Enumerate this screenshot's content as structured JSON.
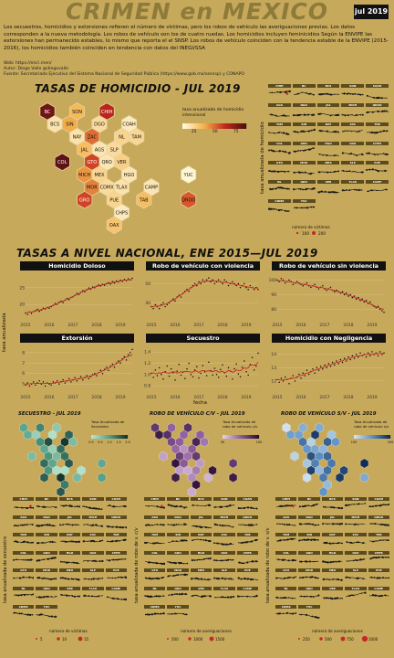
{
  "header": {
    "title": "CRIMEN en MEXICO",
    "date_badge": "jul 2019"
  },
  "intro": {
    "text": "Los secuestros, homicidios y extorsiones refieren el número de víctimas, pero los robos de vehículo las averiguaciones previas. Los datos corresponden a la nueva metodología. Los robos de vehículo son los de cuatro ruedas. Los homicidios incluyen feminicidios Según la ENVIPE las extorsiones han permanecido estables, lo mismo que reporta el el SNSP. Los robos de vehículo coinciden con la tendencia estable de la ENVIPE (2015-2016), los homicidios también coinciden en tendencia con datos del INEGI/SSA",
    "web": "Web: https://elcri.men/",
    "author": "Autor: Diego Valle @diegovalle",
    "source": "Fuente: Secretariado Ejecutivo del Sistema Nacional de Seguridad Pública (https://www.gob.mx/sesnsp) y CONAPO"
  },
  "homicide_map": {
    "title": "TASAS DE HOMICIDIO - JUL 2019",
    "legend_title": "tasa anualizada de homicidio intencional",
    "legend_ticks": [
      "25",
      "50",
      "75"
    ],
    "states": [
      {
        "abbr": "BC",
        "rate": 90
      },
      {
        "abbr": "SON",
        "rate": 30
      },
      {
        "abbr": "CHIH",
        "rate": 70
      },
      {
        "abbr": "BCS",
        "rate": 12
      },
      {
        "abbr": "SIN",
        "rate": 35
      },
      {
        "abbr": "DGO",
        "rate": 15
      },
      {
        "abbr": "COAH",
        "rate": 8
      },
      {
        "abbr": "NAY",
        "rate": 12
      },
      {
        "abbr": "ZAC",
        "rate": 50
      },
      {
        "abbr": "NL",
        "rate": 18
      },
      {
        "abbr": "TAM",
        "rate": 17
      },
      {
        "abbr": "AGS",
        "rate": 10
      },
      {
        "abbr": "JAL",
        "rate": 28
      },
      {
        "abbr": "SLP",
        "rate": 15
      },
      {
        "abbr": "COL",
        "rate": 95
      },
      {
        "abbr": "GTO",
        "rate": 60
      },
      {
        "abbr": "QRO",
        "rate": 10
      },
      {
        "abbr": "VER",
        "rate": 20
      },
      {
        "abbr": "MICH",
        "rate": 40
      },
      {
        "abbr": "MEX",
        "rate": 18
      },
      {
        "abbr": "HGO",
        "rate": 10
      },
      {
        "abbr": "YUC",
        "rate": 2
      },
      {
        "abbr": "MOR",
        "rate": 45
      },
      {
        "abbr": "CDMX",
        "rate": 15
      },
      {
        "abbr": "TLAX",
        "rate": 12
      },
      {
        "abbr": "CAMP",
        "rate": 10
      },
      {
        "abbr": "GRO",
        "rate": 60
      },
      {
        "abbr": "PUE",
        "rate": 18
      },
      {
        "abbr": "TAB",
        "rate": 28
      },
      {
        "abbr": "QROO",
        "rate": 55
      },
      {
        "abbr": "CHPS",
        "rate": 8
      },
      {
        "abbr": "OAX",
        "rate": 25
      }
    ]
  },
  "homicide_smallmult": {
    "ylabel": "tasa anualizada de homicidio",
    "labels": [
      "CHIH",
      "BC",
      "BCS",
      "SON",
      "COAH",
      "AGS",
      "DGO",
      "JAL",
      "MICH",
      "QROO",
      "TAM",
      "SIN",
      "NAY",
      "ZAC",
      "TAB",
      "COL",
      "GRO",
      "HGO",
      "OAX",
      "CHPS",
      "GTO",
      "MOR",
      "MEX",
      "SLP",
      "PUE",
      "NL",
      "QRO",
      "VER",
      "TLAX",
      "CAMP",
      "CDMX",
      "YUC"
    ],
    "size_legend_title": "número de víctimas",
    "size_legend_ticks": [
      "100",
      "200"
    ]
  },
  "national": {
    "title": "TASAS A NIVEL NACIONAL, ENE 2015—JUL 2019",
    "ylabel": "tasa anualizada",
    "xlabel": "fecha",
    "x_ticks": [
      "2015",
      "2016",
      "2017",
      "2018",
      "2019"
    ],
    "panels": [
      {
        "name": "Homicidio Doloso",
        "yticks": [
          "20",
          "25"
        ],
        "ymin": 16,
        "ymax": 29,
        "values": [
          17.5,
          17.1,
          17.8,
          17.4,
          17.9,
          18.2,
          18.6,
          18.0,
          18.4,
          18.9,
          18.7,
          19.1,
          18.9,
          19.4,
          19.8,
          20.3,
          20.1,
          20.7,
          21.0,
          20.6,
          21.3,
          21.8,
          21.5,
          22.1,
          22.3,
          22.7,
          23.3,
          23.0,
          23.6,
          24.1,
          23.8,
          24.4,
          24.9,
          24.6,
          25.2,
          25.0,
          25.4,
          25.8,
          25.5,
          26.0,
          25.7,
          26.2,
          26.5,
          26.1,
          26.8,
          26.4,
          27.0,
          26.7,
          27.2,
          26.9,
          27.4,
          27.1,
          27.6,
          27.3,
          27.8
        ]
      },
      {
        "name": "Robo de vehículo con violencia",
        "yticks": [
          "40",
          "50"
        ],
        "ymin": 32,
        "ymax": 55,
        "values": [
          38,
          37,
          39,
          38,
          37,
          39,
          40,
          38,
          39,
          40,
          41,
          42,
          41,
          43,
          44,
          43,
          45,
          46,
          47,
          46,
          48,
          49,
          50,
          49,
          51,
          50,
          52,
          51,
          52,
          53,
          51,
          52,
          50,
          51,
          52,
          51,
          50,
          52,
          51,
          49,
          50,
          51,
          50,
          49,
          50,
          48,
          49,
          50,
          48,
          47,
          49,
          48,
          47,
          48,
          47
        ]
      },
      {
        "name": "Robo de vehículo sin violencia",
        "yticks": [
          "80",
          "90",
          "100"
        ],
        "ymin": 74,
        "ymax": 104,
        "values": [
          100,
          99,
          101,
          100,
          98,
          99,
          100,
          99,
          97,
          98,
          99,
          98,
          97,
          96,
          97,
          98,
          96,
          95,
          96,
          97,
          95,
          94,
          95,
          96,
          94,
          93,
          94,
          95,
          93,
          92,
          93,
          92,
          91,
          92,
          90,
          91,
          89,
          90,
          88,
          89,
          87,
          88,
          86,
          87,
          85,
          86,
          84,
          85,
          83,
          82,
          81,
          82,
          80,
          79,
          78
        ]
      },
      {
        "name": "Extorsión",
        "yticks": [
          "5",
          "6",
          "7",
          "8"
        ],
        "ymin": 4.4,
        "ymax": 8.6,
        "values": [
          4.9,
          5.1,
          4.8,
          5.0,
          5.2,
          4.9,
          5.1,
          5.3,
          5.0,
          5.2,
          4.8,
          5.1,
          5.0,
          4.9,
          5.2,
          5.1,
          5.3,
          5.0,
          5.2,
          5.4,
          5.1,
          5.3,
          5.5,
          5.2,
          5.4,
          5.6,
          5.3,
          5.5,
          5.7,
          5.4,
          5.6,
          5.8,
          5.5,
          5.7,
          5.9,
          6.0,
          5.8,
          6.1,
          6.3,
          6.0,
          6.4,
          6.6,
          6.3,
          6.7,
          6.9,
          6.6,
          7.0,
          7.2,
          7.0,
          7.4,
          7.6,
          7.3,
          7.8,
          8.0,
          8.3
        ]
      },
      {
        "name": "Secuestro",
        "yticks": [
          "0.8",
          "1.0",
          "1.2",
          "1.4"
        ],
        "ymin": 0.72,
        "ymax": 1.5,
        "values": [
          1.02,
          0.95,
          1.08,
          0.98,
          1.12,
          1.0,
          0.92,
          1.05,
          1.15,
          0.97,
          1.1,
          1.03,
          0.9,
          1.06,
          1.18,
          0.99,
          1.04,
          0.93,
          1.1,
          1.2,
          1.0,
          0.96,
          1.08,
          1.14,
          0.94,
          1.02,
          1.16,
          1.05,
          0.98,
          1.22,
          1.07,
          0.99,
          1.11,
          1.0,
          0.95,
          1.09,
          1.17,
          1.03,
          0.97,
          1.12,
          1.06,
          0.92,
          1.1,
          1.19,
          1.01,
          0.96,
          1.13,
          1.24,
          1.05,
          0.99,
          1.18,
          1.3,
          1.08,
          1.15,
          1.38
        ]
      },
      {
        "name": "Homicidio con Negligencia",
        "yticks": [
          "12",
          "13",
          "14"
        ],
        "ymin": 11.3,
        "ymax": 14.6,
        "values": [
          12.1,
          11.9,
          12.2,
          12.0,
          12.3,
          12.1,
          11.8,
          12.2,
          12.4,
          12.0,
          12.3,
          12.5,
          12.2,
          12.6,
          12.4,
          12.8,
          12.5,
          12.7,
          12.9,
          12.6,
          13.0,
          12.8,
          13.1,
          12.9,
          13.2,
          13.0,
          13.3,
          13.1,
          13.4,
          13.2,
          13.5,
          13.3,
          13.6,
          13.4,
          13.7,
          13.5,
          13.8,
          13.6,
          13.9,
          13.7,
          14.0,
          13.8,
          14.1,
          13.9,
          14.0,
          13.8,
          14.1,
          13.9,
          14.2,
          14.0,
          14.1,
          13.9,
          14.2,
          14.0,
          14.1
        ]
      }
    ]
  },
  "mini_maps": [
    {
      "title": "SECUESTRO - JUL 2019",
      "legend_title": "Tasa Anualizada de Secuestro",
      "legend_ticks": [
        "0.0",
        "0.5",
        "1.0",
        "1.5",
        "2.0"
      ],
      "palette": [
        "#b3e6d1",
        "#4f9e8a",
        "#14332d"
      ]
    },
    {
      "title": "ROBO DE VEHÍCULO C/V - JUL 2019",
      "legend_title": "Tasa Anualizada de robo de vehículo c/v",
      "legend_ticks": [
        "50",
        "100"
      ],
      "palette": [
        "#e3cde8",
        "#8b5b9e",
        "#2b0f38"
      ]
    },
    {
      "title": "ROBO DE VEHÍCULO S/V - JUL 2019",
      "legend_title": "Tasa Anualizada de robo de vehículo s/v",
      "legend_ticks": [
        "100",
        "200"
      ],
      "palette": [
        "#cfe2f3",
        "#5b90c8",
        "#0d2b55"
      ]
    }
  ],
  "bottom_blocks": [
    {
      "ylabel": "tasa anualizada de secuestro",
      "size_legend_title": "número de víctimas",
      "size_legend_ticks": [
        "5",
        "10",
        "15"
      ]
    },
    {
      "ylabel": "tasa anualizada de robo de v. c/v",
      "size_legend_title": "número de averiguaciones",
      "size_legend_ticks": [
        "500",
        "1000",
        "1500"
      ]
    },
    {
      "ylabel": "tasa anualizada de robo de v. s/v",
      "size_legend_title": "número de averiguaciones",
      "size_legend_ticks": [
        "250",
        "500",
        "750",
        "1000"
      ]
    }
  ]
}
